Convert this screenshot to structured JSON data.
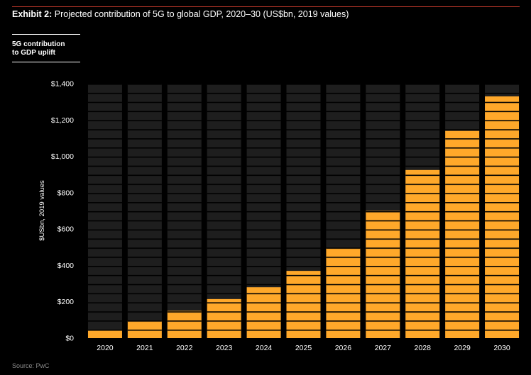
{
  "header": {
    "exhibit_label": "Exhibit 2:",
    "title": "Projected contribution of 5G to global GDP, 2020–30 (US$bn, 2019 values)"
  },
  "legend": {
    "line1": "5G contribution",
    "line2": "to GDP uplift"
  },
  "source": "Source: PwC",
  "colors": {
    "background": "#000000",
    "bar_fill": "#ffa82a",
    "bar_track": "#1e1e1e",
    "stripe": "#000000",
    "accent_rule": "#c0392b"
  },
  "chart_data": {
    "type": "bar",
    "title": "Projected contribution of 5G to global GDP, 2020–30 (US$bn, 2019 values)",
    "ylabel": "$USbn, 2019 values",
    "xlabel": "",
    "categories": [
      "2020",
      "2021",
      "2022",
      "2023",
      "2024",
      "2025",
      "2026",
      "2027",
      "2028",
      "2029",
      "2030"
    ],
    "series": [
      {
        "name": "5G contribution to GDP uplift",
        "values": [
          45,
          95,
          150,
          215,
          280,
          370,
          495,
          700,
          925,
          1140,
          1330
        ]
      }
    ],
    "ylim": [
      0,
      1400
    ],
    "yticks": [
      0,
      200,
      400,
      600,
      800,
      1000,
      1200,
      1400
    ],
    "ytick_labels": [
      "$0",
      "$200",
      "$400",
      "$600",
      "$800",
      "$1,000",
      "$1,200",
      "$1,400"
    ],
    "grid": false,
    "legend_position": "top-left"
  }
}
